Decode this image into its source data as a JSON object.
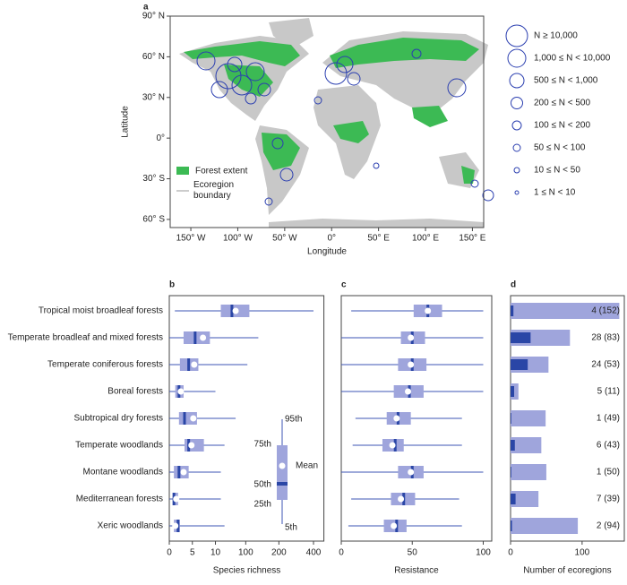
{
  "chart_data": [
    {
      "type": "map",
      "panel": "a",
      "xlabel": "Longitude",
      "ylabel": "Latitude",
      "xlim": [
        -172,
        162
      ],
      "ylim": [
        -66,
        90
      ],
      "xticks": [
        {
          "value": -150,
          "label": "150° W"
        },
        {
          "value": -100,
          "label": "100° W"
        },
        {
          "value": -50,
          "label": "50° W"
        },
        {
          "value": 0,
          "label": "0°"
        },
        {
          "value": 50,
          "label": "50° E"
        },
        {
          "value": 100,
          "label": "100° E"
        },
        {
          "value": 150,
          "label": "150° E"
        }
      ],
      "yticks": [
        {
          "value": 90,
          "label": "90° N"
        },
        {
          "value": 60,
          "label": "60° N"
        },
        {
          "value": 30,
          "label": "30° N"
        },
        {
          "value": 0,
          "label": "0°"
        },
        {
          "value": -30,
          "label": "30° S"
        },
        {
          "value": -60,
          "label": "60° S"
        }
      ],
      "legend": [
        "Forest extent",
        "Ecoregion boundary"
      ],
      "forest_color": "#3cba54",
      "land_color": "#c8c8c8",
      "circle_color": "#2b3fb0",
      "size_legend": [
        "N ≥ 10,000",
        "1,000 ≤ N < 10,000",
        "500 ≤ N < 1,000",
        "200 ≤ N < 500",
        "100 ≤ N < 200",
        "50 ≤ N < 100",
        "10 ≤ N < 50",
        "1 ≤ N < 10"
      ]
    },
    {
      "type": "box",
      "panel": "b",
      "xlabel": "Species richness",
      "xlim": [
        0,
        460
      ],
      "xticks": [
        0,
        5,
        10,
        100,
        200,
        400
      ],
      "categories": [
        "Tropical moist broadleaf forests",
        "Temperate broadleaf and mixed forests",
        "Temperate coniferous forests",
        "Boreal forests",
        "Subtropical dry forests",
        "Temperate woodlands",
        "Montane woodlands",
        "Mediterranean forests",
        "Xeric woodlands"
      ],
      "p5": [
        1.2,
        0,
        0,
        0,
        0,
        0,
        0,
        0,
        0
      ],
      "p25": [
        26,
        3.1,
        2.3,
        1.3,
        2.1,
        3.3,
        1.0,
        0.8,
        1.0
      ],
      "median": [
        59,
        5.6,
        4.2,
        2.1,
        3.3,
        4.2,
        2.1,
        1.0,
        1.9
      ],
      "p75": [
        111,
        8.8,
        6.3,
        3.1,
        6.0,
        7.5,
        4.2,
        1.9,
        2.3
      ],
      "p95": [
        400,
        138,
        105,
        10,
        70,
        37,
        26,
        26,
        37
      ],
      "mean": [
        70,
        7.3,
        5.4,
        2.5,
        5.2,
        4.8,
        3.1,
        1.5,
        1.3
      ],
      "box_color": "#9fa5dc",
      "median_color": "#2a46a6",
      "whisker_color": "#3d56b5",
      "box_legend": [
        "95th",
        "75th",
        "Mean",
        "50th",
        "25th",
        "5th"
      ]
    },
    {
      "type": "box",
      "panel": "c",
      "xlabel": "Resistance",
      "xlim": [
        0,
        106
      ],
      "xticks": [
        0,
        50,
        100
      ],
      "p5": [
        7,
        0,
        0,
        0,
        10,
        8,
        0,
        7,
        5
      ],
      "p25": [
        51,
        42,
        40,
        37,
        32,
        29,
        40,
        35,
        30
      ],
      "median": [
        61,
        50,
        50,
        48,
        40,
        38,
        50,
        44,
        39
      ],
      "p75": [
        71,
        59,
        60,
        58,
        49,
        44,
        58,
        52,
        46
      ],
      "p95": [
        100,
        100,
        100,
        100,
        85,
        85,
        100,
        83,
        85
      ],
      "mean": [
        61,
        49,
        49,
        47,
        39,
        36,
        49,
        42,
        37
      ],
      "box_color": "#9fa5dc",
      "median_color": "#2a46a6",
      "whisker_color": "#3d56b5"
    },
    {
      "type": "bar",
      "panel": "d",
      "xlabel": "Number of ecoregions",
      "xlim": [
        0,
        159
      ],
      "xticks": [
        0,
        100
      ],
      "series": [
        {
          "color": "#9fa5dc",
          "values": [
            152,
            83,
            53,
            11,
            49,
            43,
            50,
            39,
            94
          ]
        },
        {
          "color": "#2a46a6",
          "values": [
            4,
            28,
            24,
            5,
            1,
            6,
            1,
            7,
            2
          ]
        }
      ],
      "value_labels": [
        "4 (152)",
        "28 (83)",
        "24 (53)",
        "5 (11)",
        "1 (49)",
        "6 (43)",
        "1 (50)",
        "7 (39)",
        "2 (94)"
      ]
    }
  ]
}
